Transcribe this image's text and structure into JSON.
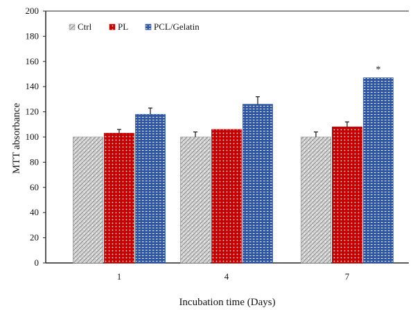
{
  "chart_data": {
    "type": "bar",
    "categories": [
      "1",
      "4",
      "7"
    ],
    "series": [
      {
        "name": "Ctrl",
        "values": [
          100,
          100,
          100
        ],
        "errors": [
          0,
          4,
          4
        ],
        "color": "#cfcfcf",
        "pattern": "diagonal-dots"
      },
      {
        "name": "PL",
        "values": [
          103,
          106,
          108
        ],
        "errors": [
          3,
          0,
          4
        ],
        "color": "#c40000",
        "pattern": "white-dots"
      },
      {
        "name": "PCL/Gelatin",
        "values": [
          118,
          126,
          147
        ],
        "errors": [
          5,
          6,
          0
        ],
        "color": "#2f57a6",
        "pattern": "white-dots"
      }
    ],
    "xlabel": "Incubation time (Days)",
    "ylabel": "MTT absorbance",
    "ylim": [
      0,
      200
    ],
    "yticks": [
      "0",
      "20",
      "40",
      "60",
      "80",
      "100",
      "120",
      "140",
      "160",
      "180",
      "200"
    ],
    "annotations": [
      {
        "category": "7",
        "series": "PCL/Gelatin",
        "text": "*"
      }
    ],
    "legend": "top-left",
    "grid": false
  }
}
